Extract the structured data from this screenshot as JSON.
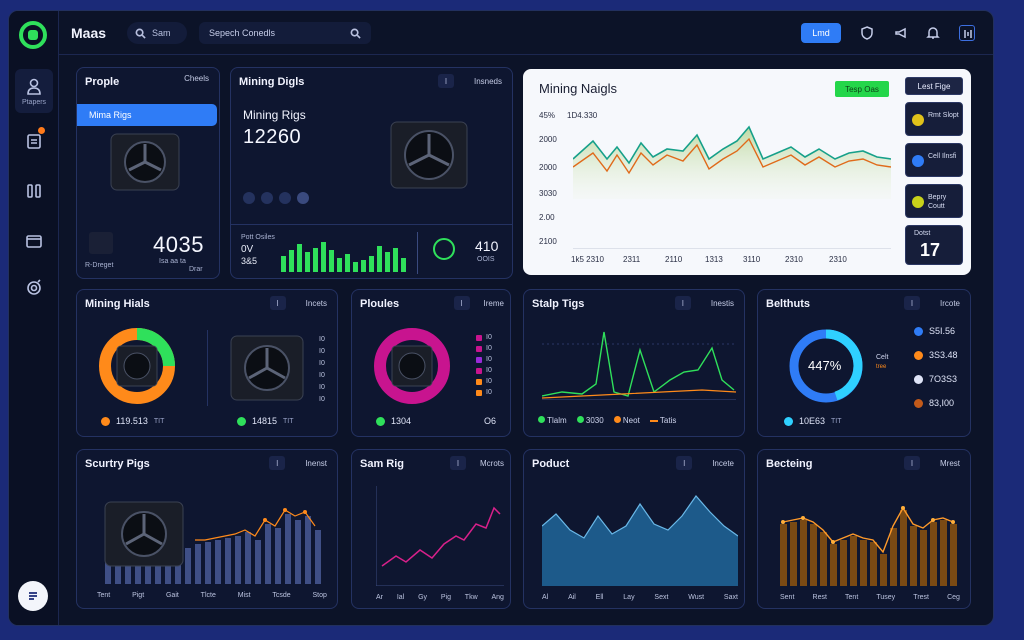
{
  "app": {
    "title": "Maas"
  },
  "search": {
    "small_label": "Sam",
    "main_placeholder": "Sepech Conedls"
  },
  "top": {
    "button_label": "Lmd"
  },
  "sidebar": {
    "items": [
      {
        "label": "Ptapers"
      }
    ]
  },
  "cards": {
    "people": {
      "title": "Prople",
      "menu": "Cheels",
      "highlight": "Mima Rigs",
      "number": "4035",
      "sub_left": "R-Dreget",
      "sub_right": "Isa aa ta",
      "sub_right2": "Drar"
    },
    "mining_digs": {
      "title": "Mining Digls",
      "menu": "Insneds",
      "chip": "I",
      "headline": "Mining Rigs",
      "number": "12260",
      "bar_label1": "Pott Osiles",
      "bar_label2": "0V",
      "bar_label3": "3&5",
      "right_num": "410",
      "right_sub": "OOIS"
    },
    "mining_hials": {
      "title": "Mining Hials",
      "menu": "Incets",
      "chip": "I",
      "legend1_value": "119.513",
      "legend1_unit": "TIT",
      "legend2_value": "14815",
      "legend2_unit": "TIT",
      "ticks": [
        "I0",
        "I0",
        "I0",
        "I0",
        "I0",
        "I0"
      ]
    },
    "ploules": {
      "title": "Ploules",
      "menu": "Ireme",
      "chip": "I",
      "legend_value": "1304",
      "legend_extra": "O6",
      "ticks": [
        "I0",
        "I0",
        "I0",
        "I0",
        "I0",
        "I0"
      ]
    },
    "stalp_tigs": {
      "title": "Stalp Tigs",
      "menu": "Inestis",
      "chip": "I",
      "legend": [
        "Tlalm",
        "3030",
        "Neot",
        "Tatis"
      ]
    },
    "beltnuts": {
      "title": "Belthuts",
      "menu": "Ircote",
      "chip": "I",
      "center": "447%",
      "mid_label": "Celt",
      "mid_sub": "tree",
      "legend_value": "10E63",
      "legend_unit": "TIT",
      "values": [
        "S5I.56",
        "3S3.48",
        "7O3S3",
        "83,I00"
      ]
    },
    "scurtry": {
      "title": "Scurtry Pigs",
      "menu": "Inenst",
      "chip": "I",
      "x_labels": [
        "Tent",
        "Pigt",
        "Gait",
        "Tlcte",
        "Mist",
        "Tcsde",
        "Stop"
      ]
    },
    "sam_rig": {
      "title": "Sam Rig",
      "menu": "Mcrots",
      "chip": "I",
      "x_labels": [
        "Ar",
        "Ial",
        "Gy",
        "Pig",
        "Tkw",
        "Ang"
      ]
    },
    "product": {
      "title": "Poduct",
      "menu": "Incete",
      "chip": "I",
      "x_labels": [
        "Al",
        "Ail",
        "Ell",
        "Lay",
        "Sext",
        "Wust",
        "Saxt"
      ]
    },
    "becteing": {
      "title": "Becteing",
      "menu": "Mrest",
      "chip": "I",
      "x_labels": [
        "Sent",
        "Rest",
        "Tent",
        "Tusey",
        "Trest",
        "Ceg"
      ]
    }
  },
  "main_chart": {
    "title": "Mining Naigls",
    "badge": "Tesp Oas",
    "y_labels": [
      "45%",
      "1D4.330",
      "2000",
      "2000",
      "3030",
      "2.00",
      "2100"
    ],
    "x_labels": [
      "1k5 2310",
      "2311",
      "2110",
      "1313",
      "3110",
      "2310",
      "2310"
    ],
    "panel": {
      "head": "Lest Fige",
      "item1": "Rmt Slopt",
      "item2": "Cell Ilnsfi",
      "item3": "Bepry Coutt",
      "item4_label": "Dotst",
      "item4_num": "17"
    }
  },
  "colors": {
    "green": "#2fe05b",
    "blue": "#2f7cf6",
    "orange": "#ff8a1a",
    "magenta": "#c8148f",
    "cyan": "#2fd0ff"
  }
}
